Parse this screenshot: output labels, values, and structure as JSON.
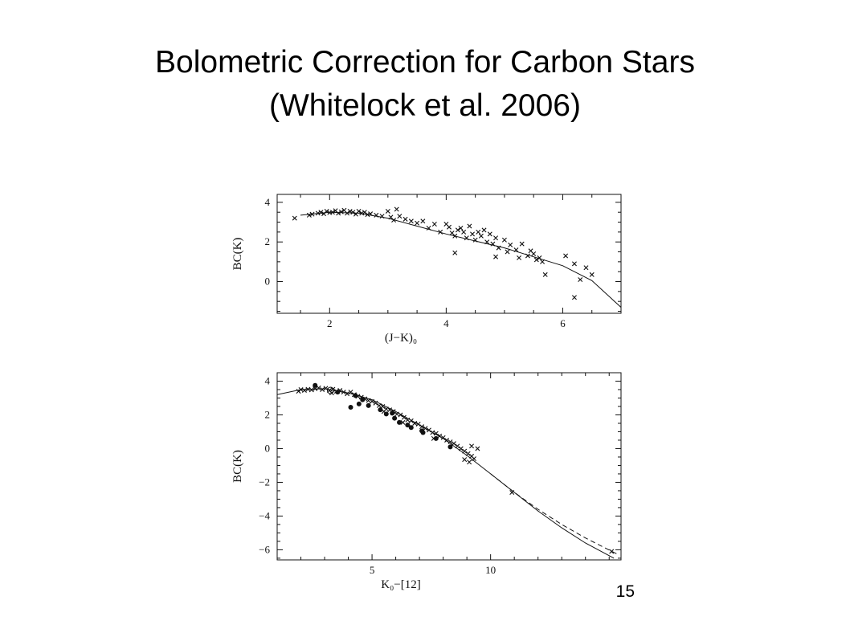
{
  "slide": {
    "title_line_1": "Bolometric Correction for Carbon Stars",
    "title_line_2": "(Whitelock et al. 2006)",
    "slide_number": "15"
  },
  "colors": {
    "ink": "#111111",
    "background": "#ffffff"
  },
  "chart_data": [
    {
      "type": "scatter",
      "title": "",
      "xlabel": "(J−K)₀",
      "ylabel": "BC(K)",
      "xlim": [
        1.1,
        7.0
      ],
      "ylim": [
        -1.6,
        4.4
      ],
      "xticks": [
        2,
        4,
        6
      ],
      "yticks": [
        0,
        2,
        4
      ],
      "grid": false,
      "legend": "none",
      "fit_curve": {
        "style": "solid",
        "points": [
          [
            1.5,
            3.35
          ],
          [
            2.0,
            3.5
          ],
          [
            2.5,
            3.45
          ],
          [
            3.0,
            3.2
          ],
          [
            3.5,
            2.8
          ],
          [
            4.0,
            2.4
          ],
          [
            4.5,
            2.05
          ],
          [
            5.0,
            1.7
          ],
          [
            5.5,
            1.25
          ],
          [
            6.0,
            0.8
          ],
          [
            6.5,
            0.05
          ],
          [
            7.0,
            -1.3
          ]
        ]
      },
      "series": [
        {
          "marker": "cross",
          "points": [
            [
              1.4,
              3.2
            ],
            [
              1.65,
              3.35
            ],
            [
              1.7,
              3.4
            ],
            [
              1.8,
              3.45
            ],
            [
              1.85,
              3.5
            ],
            [
              1.9,
              3.42
            ],
            [
              1.95,
              3.55
            ],
            [
              2.0,
              3.48
            ],
            [
              2.05,
              3.5
            ],
            [
              2.1,
              3.58
            ],
            [
              2.15,
              3.45
            ],
            [
              2.2,
              3.52
            ],
            [
              2.25,
              3.6
            ],
            [
              2.3,
              3.45
            ],
            [
              2.35,
              3.55
            ],
            [
              2.4,
              3.5
            ],
            [
              2.45,
              3.4
            ],
            [
              2.5,
              3.55
            ],
            [
              2.55,
              3.45
            ],
            [
              2.6,
              3.5
            ],
            [
              2.65,
              3.38
            ],
            [
              2.7,
              3.42
            ],
            [
              2.8,
              3.35
            ],
            [
              2.9,
              3.3
            ],
            [
              3.0,
              3.55
            ],
            [
              3.05,
              3.25
            ],
            [
              3.1,
              3.1
            ],
            [
              3.2,
              3.3
            ],
            [
              3.3,
              3.15
            ],
            [
              3.4,
              3.05
            ],
            [
              3.5,
              2.95
            ],
            [
              3.6,
              3.05
            ],
            [
              3.7,
              2.7
            ],
            [
              3.8,
              2.9
            ],
            [
              3.9,
              2.5
            ],
            [
              4.0,
              2.9
            ],
            [
              4.05,
              2.75
            ],
            [
              4.1,
              2.45
            ],
            [
              4.15,
              2.3
            ],
            [
              4.2,
              2.6
            ],
            [
              4.25,
              2.7
            ],
            [
              4.3,
              2.5
            ],
            [
              4.35,
              2.2
            ],
            [
              4.4,
              2.8
            ],
            [
              4.45,
              2.4
            ],
            [
              4.5,
              2.1
            ],
            [
              4.55,
              2.5
            ],
            [
              4.6,
              2.3
            ],
            [
              4.65,
              2.6
            ],
            [
              4.7,
              2.0
            ],
            [
              4.75,
              2.4
            ],
            [
              4.8,
              1.9
            ],
            [
              4.85,
              2.2
            ],
            [
              4.9,
              1.7
            ],
            [
              5.0,
              2.1
            ],
            [
              5.05,
              1.5
            ],
            [
              5.1,
              1.85
            ],
            [
              5.2,
              1.6
            ],
            [
              5.3,
              1.9
            ],
            [
              5.4,
              1.3
            ],
            [
              5.45,
              1.55
            ],
            [
              5.5,
              1.4
            ],
            [
              5.55,
              1.1
            ],
            [
              5.6,
              1.2
            ],
            [
              5.65,
              1.0
            ],
            [
              5.7,
              0.35
            ],
            [
              6.05,
              1.3
            ],
            [
              6.2,
              0.9
            ],
            [
              6.3,
              0.1
            ],
            [
              6.4,
              0.7
            ],
            [
              6.5,
              0.35
            ],
            [
              6.2,
              -0.8
            ],
            [
              4.85,
              1.25
            ],
            [
              5.25,
              1.2
            ],
            [
              4.15,
              1.45
            ],
            [
              3.15,
              3.65
            ]
          ]
        }
      ]
    },
    {
      "type": "scatter",
      "title": "",
      "xlabel": "K₀−[12]",
      "ylabel": "BC(K)",
      "xlim": [
        1.0,
        15.5
      ],
      "ylim": [
        -6.6,
        4.5
      ],
      "xticks": [
        5,
        10
      ],
      "yticks": [
        -6,
        -4,
        -2,
        0,
        2,
        4
      ],
      "grid": false,
      "legend": "none",
      "fit_curve": {
        "style": "solid",
        "points": [
          [
            1.0,
            3.2
          ],
          [
            2.0,
            3.5
          ],
          [
            3.0,
            3.55
          ],
          [
            4.0,
            3.3
          ],
          [
            5.0,
            2.9
          ],
          [
            6.0,
            2.2
          ],
          [
            7.0,
            1.4
          ],
          [
            8.0,
            0.6
          ],
          [
            9.0,
            -0.4
          ],
          [
            10.0,
            -1.5
          ],
          [
            11.0,
            -2.6
          ],
          [
            12.0,
            -3.7
          ],
          [
            13.0,
            -4.7
          ],
          [
            14.0,
            -5.6
          ],
          [
            15.2,
            -6.5
          ]
        ]
      },
      "fit_curve_dashed": {
        "style": "dashed",
        "points": [
          [
            10.0,
            -1.5
          ],
          [
            11.0,
            -2.6
          ],
          [
            12.0,
            -3.6
          ],
          [
            13.0,
            -4.5
          ],
          [
            14.0,
            -5.3
          ],
          [
            15.4,
            -6.3
          ]
        ]
      },
      "series": [
        {
          "marker": "cross",
          "points": [
            [
              1.9,
              3.4
            ],
            [
              2.0,
              3.5
            ],
            [
              2.15,
              3.45
            ],
            [
              2.3,
              3.52
            ],
            [
              2.45,
              3.48
            ],
            [
              2.6,
              3.55
            ],
            [
              2.75,
              3.6
            ],
            [
              2.9,
              3.5
            ],
            [
              3.05,
              3.58
            ],
            [
              3.2,
              3.45
            ],
            [
              3.35,
              3.52
            ],
            [
              3.5,
              3.4
            ],
            [
              3.65,
              3.45
            ],
            [
              3.8,
              3.35
            ],
            [
              3.95,
              3.25
            ],
            [
              4.1,
              3.35
            ],
            [
              4.25,
              3.2
            ],
            [
              4.4,
              3.1
            ],
            [
              4.55,
              3.05
            ],
            [
              4.7,
              2.95
            ],
            [
              4.85,
              2.85
            ],
            [
              5.0,
              2.8
            ],
            [
              5.15,
              2.7
            ],
            [
              5.3,
              2.55
            ],
            [
              5.45,
              2.5
            ],
            [
              5.6,
              2.35
            ],
            [
              5.75,
              2.3
            ],
            [
              5.9,
              2.2
            ],
            [
              6.05,
              2.05
            ],
            [
              6.2,
              2.0
            ],
            [
              6.35,
              1.85
            ],
            [
              6.5,
              1.7
            ],
            [
              6.65,
              1.65
            ],
            [
              6.8,
              1.5
            ],
            [
              6.95,
              1.45
            ],
            [
              7.1,
              1.3
            ],
            [
              7.25,
              1.2
            ],
            [
              7.4,
              1.1
            ],
            [
              7.55,
              0.95
            ],
            [
              7.7,
              0.9
            ],
            [
              7.85,
              0.75
            ],
            [
              8.0,
              0.65
            ],
            [
              8.15,
              0.5
            ],
            [
              8.3,
              0.4
            ],
            [
              8.45,
              0.3
            ],
            [
              8.6,
              0.15
            ],
            [
              8.75,
              0.0
            ],
            [
              8.9,
              -0.15
            ],
            [
              9.05,
              -0.3
            ],
            [
              9.2,
              -0.45
            ],
            [
              9.3,
              -0.6
            ],
            [
              9.1,
              -0.8
            ],
            [
              8.9,
              -0.65
            ],
            [
              9.45,
              0.0
            ],
            [
              9.2,
              0.15
            ],
            [
              10.9,
              -2.6
            ],
            [
              15.1,
              -6.1
            ],
            [
              3.3,
              3.3
            ],
            [
              5.5,
              2.2
            ],
            [
              6.3,
              1.55
            ],
            [
              7.6,
              0.6
            ]
          ]
        },
        {
          "marker": "dot",
          "points": [
            [
              2.6,
              3.75
            ],
            [
              3.55,
              3.35
            ],
            [
              4.3,
              3.15
            ],
            [
              4.45,
              2.65
            ],
            [
              4.85,
              2.55
            ],
            [
              5.35,
              2.3
            ],
            [
              5.6,
              2.05
            ],
            [
              5.95,
              1.8
            ],
            [
              6.15,
              1.55
            ],
            [
              6.5,
              1.4
            ],
            [
              6.65,
              1.25
            ],
            [
              7.15,
              0.95
            ],
            [
              7.7,
              0.6
            ],
            [
              8.3,
              0.1
            ],
            [
              4.6,
              2.9
            ],
            [
              5.85,
              2.1
            ],
            [
              7.1,
              1.05
            ],
            [
              4.1,
              2.45
            ]
          ]
        },
        {
          "marker": "ring",
          "points": [
            [
              3.25,
              3.45
            ]
          ]
        }
      ]
    }
  ]
}
